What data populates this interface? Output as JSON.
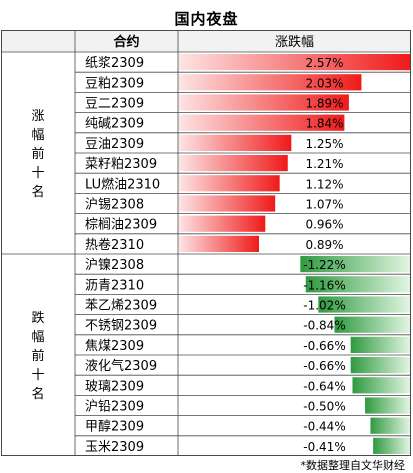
{
  "title": "国内夜盘",
  "header": {
    "contract": "合约",
    "change": "涨跌幅"
  },
  "groups": {
    "gainers": "涨幅前十名",
    "losers": "跌幅前十名"
  },
  "footnote": "*数据整理自文华财经",
  "colors": {
    "gain_dark": "#f01a1a",
    "gain_light": "#fde4e4",
    "loss_dark": "#2f9a40",
    "loss_light": "#e2f5e2",
    "header_bg": "#f2f2f2",
    "border": "#4a4a4a"
  },
  "chart_data": {
    "type": "table",
    "columns": [
      "合约",
      "涨跌幅"
    ],
    "rows": [
      {
        "contract": "纸浆2309",
        "change": 2.57,
        "label": "2.57%"
      },
      {
        "contract": "豆粕2309",
        "change": 2.03,
        "label": "2.03%"
      },
      {
        "contract": "豆二2309",
        "change": 1.89,
        "label": "1.89%"
      },
      {
        "contract": "纯碱2309",
        "change": 1.84,
        "label": "1.84%"
      },
      {
        "contract": "豆油2309",
        "change": 1.25,
        "label": "1.25%"
      },
      {
        "contract": "菜籽粕2309",
        "change": 1.21,
        "label": "1.21%"
      },
      {
        "contract": "LU燃油2310",
        "change": 1.12,
        "label": "1.12%"
      },
      {
        "contract": "沪锡2308",
        "change": 1.07,
        "label": "1.07%"
      },
      {
        "contract": "棕榈油2309",
        "change": 0.96,
        "label": "0.96%"
      },
      {
        "contract": "热卷2310",
        "change": 0.89,
        "label": "0.89%"
      },
      {
        "contract": "沪镍2308",
        "change": -1.22,
        "label": "-1.22%"
      },
      {
        "contract": "沥青2310",
        "change": -1.16,
        "label": "-1.16%"
      },
      {
        "contract": "苯乙烯2309",
        "change": -1.02,
        "label": "-1.02%"
      },
      {
        "contract": "不锈钢2309",
        "change": -0.84,
        "label": "-0.84%"
      },
      {
        "contract": "焦煤2309",
        "change": -0.66,
        "label": "-0.66%"
      },
      {
        "contract": "液化气2309",
        "change": -0.66,
        "label": "-0.66%"
      },
      {
        "contract": "玻璃2309",
        "change": -0.64,
        "label": "-0.64%"
      },
      {
        "contract": "沪铅2309",
        "change": -0.5,
        "label": "-0.50%"
      },
      {
        "contract": "甲醇2309",
        "change": -0.44,
        "label": "-0.44%"
      },
      {
        "contract": "玉米2309",
        "change": -0.41,
        "label": "-0.41%"
      }
    ]
  }
}
